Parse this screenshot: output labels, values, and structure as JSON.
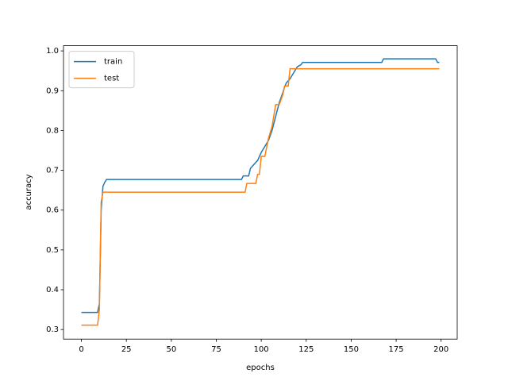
{
  "chart_data": {
    "type": "line",
    "x_label": "epochs",
    "y_label": "accuracy",
    "x": [
      0,
      9,
      10,
      11,
      12,
      13,
      14,
      89,
      90,
      91,
      92,
      93,
      94,
      96,
      97,
      98,
      99,
      100,
      102,
      104,
      106,
      108,
      110,
      112,
      113,
      114,
      115,
      116,
      118,
      120,
      122,
      123,
      167,
      168,
      197,
      198,
      199
    ],
    "series": [
      {
        "name": "train",
        "color": "#1f77b4",
        "values": [
          0.343,
          0.343,
          0.365,
          0.6,
          0.66,
          0.67,
          0.677,
          0.677,
          0.686,
          0.686,
          0.686,
          0.686,
          0.705,
          0.715,
          0.72,
          0.725,
          0.735,
          0.745,
          0.76,
          0.775,
          0.8,
          0.835,
          0.87,
          0.895,
          0.91,
          0.92,
          0.925,
          0.93,
          0.945,
          0.96,
          0.965,
          0.971,
          0.971,
          0.98,
          0.98,
          0.971,
          0.971
        ]
      },
      {
        "name": "test",
        "color": "#ff7f0e",
        "values": [
          0.311,
          0.311,
          0.35,
          0.62,
          0.645,
          0.645,
          0.645,
          0.645,
          0.645,
          0.645,
          0.667,
          0.667,
          0.667,
          0.667,
          0.667,
          0.69,
          0.69,
          0.735,
          0.735,
          0.78,
          0.81,
          0.865,
          0.865,
          0.89,
          0.912,
          0.912,
          0.912,
          0.955,
          0.955,
          0.955,
          0.955,
          0.955,
          0.955,
          0.955,
          0.955,
          0.955,
          0.955
        ]
      }
    ],
    "xlim": [
      -9.95,
      208.95
    ],
    "xticks": [
      0,
      25,
      50,
      75,
      100,
      125,
      150,
      175,
      200
    ],
    "ylim": [
      0.276,
      1.013
    ],
    "yticks": [
      0.3,
      0.4,
      0.5,
      0.6,
      0.7,
      0.8,
      0.9,
      {
        "value": 1,
        "label": "1.0"
      }
    ],
    "legend": "upper left"
  }
}
